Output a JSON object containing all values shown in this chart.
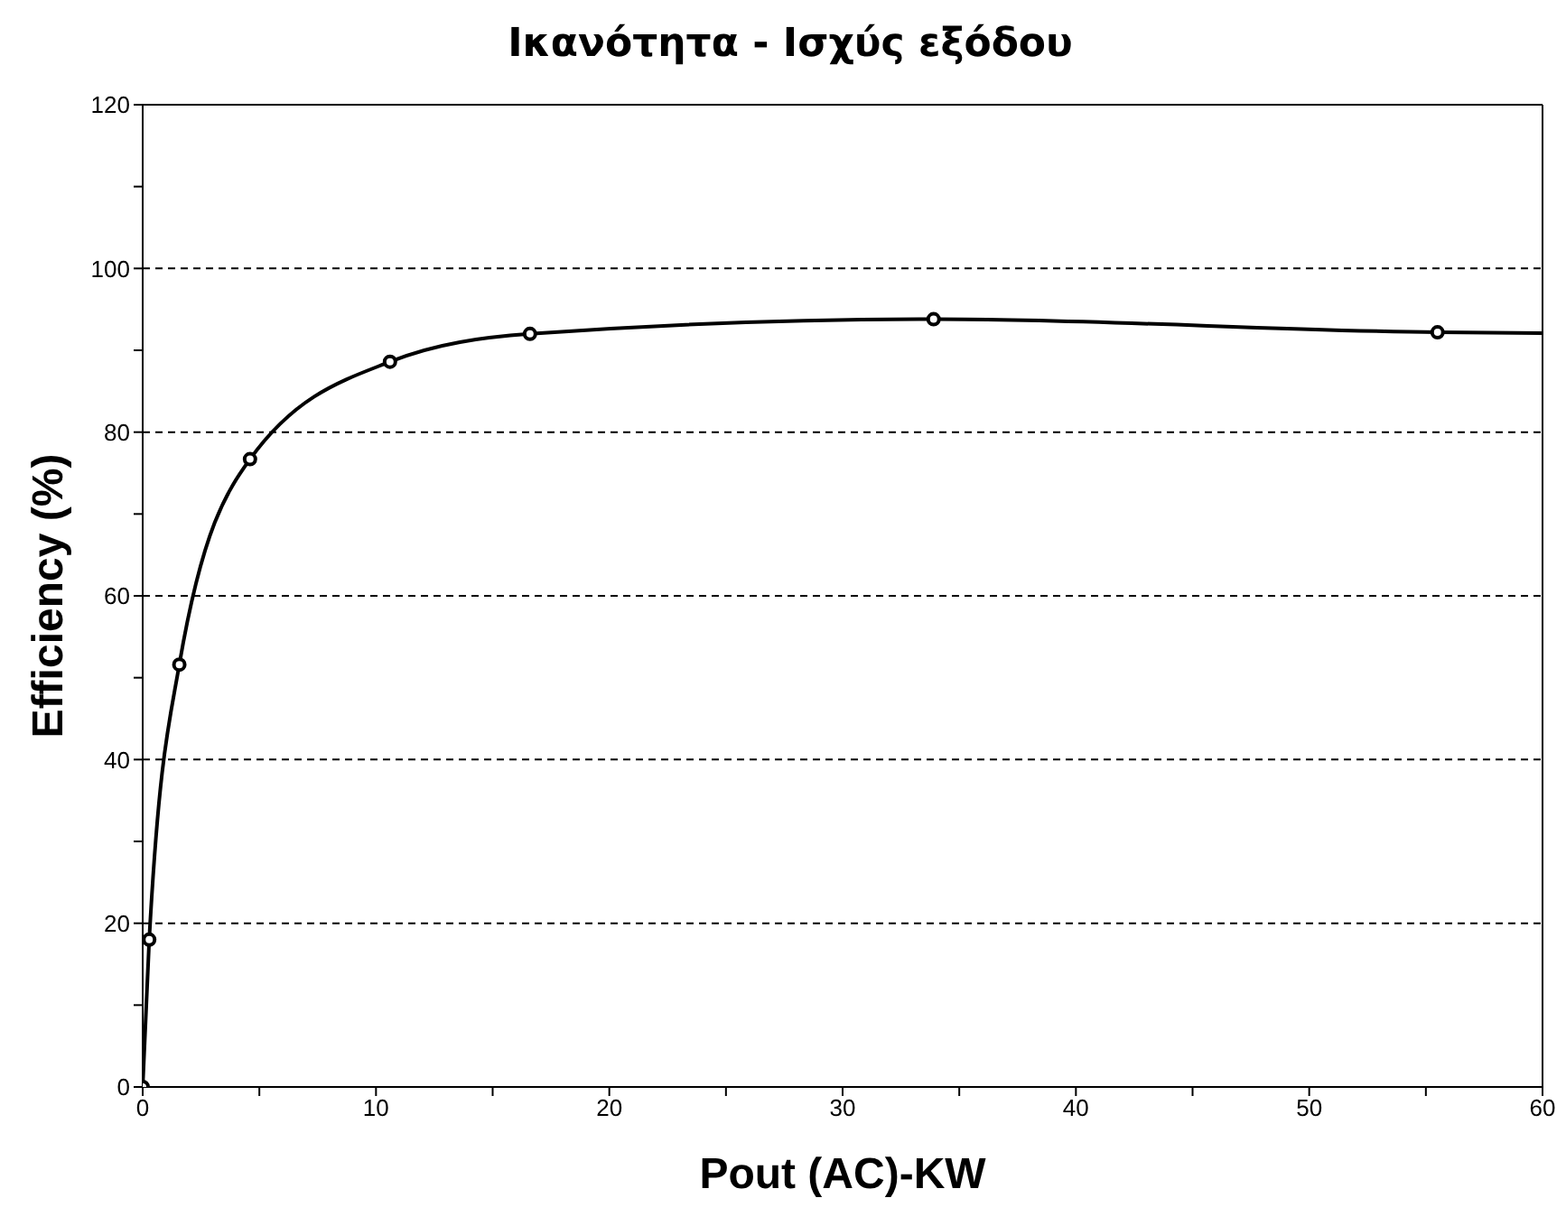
{
  "chart_data": {
    "type": "line",
    "title": "Ικανότητα - Ισχύς εξόδου",
    "xlabel": "Pout (AC)-KW",
    "ylabel": "Efficiency (%)",
    "xlim": [
      0,
      60
    ],
    "xticks": [
      0,
      {
        "value": 5,
        "label": null
      },
      10,
      {
        "value": 15,
        "label": null
      },
      20,
      {
        "value": 25,
        "label": null
      },
      30,
      {
        "value": 35,
        "label": null
      },
      40,
      {
        "value": 45,
        "label": null
      },
      50,
      {
        "value": 55,
        "label": null
      },
      60
    ],
    "ylim": [
      0,
      120
    ],
    "yticks": [
      0,
      {
        "value": 10,
        "label": null
      },
      20,
      {
        "value": 30,
        "label": null
      },
      40,
      {
        "value": 50,
        "label": null
      },
      60,
      {
        "value": 70,
        "label": null
      },
      80,
      {
        "value": 90,
        "label": null
      },
      100,
      {
        "value": 110,
        "label": null
      },
      120
    ],
    "grid": "y",
    "line_style": "solid",
    "series": [
      {
        "type": "line",
        "color": "#000000",
        "marker": "none",
        "x": [
          0,
          0.28,
          1.57,
          4.6,
          10.6,
          16.6,
          33.9,
          55.5,
          60
        ],
        "values": [
          0,
          18,
          51.6,
          76.7,
          88.6,
          92,
          93.8,
          92.2,
          92.1
        ]
      },
      {
        "type": "scatter",
        "color": "#000000",
        "marker": "circle",
        "x": [
          0,
          0.28,
          1.57,
          4.6,
          10.6,
          16.6,
          33.9,
          55.5
        ],
        "values": [
          0,
          18,
          51.6,
          76.7,
          88.6,
          92,
          93.8,
          92.2
        ]
      }
    ]
  }
}
